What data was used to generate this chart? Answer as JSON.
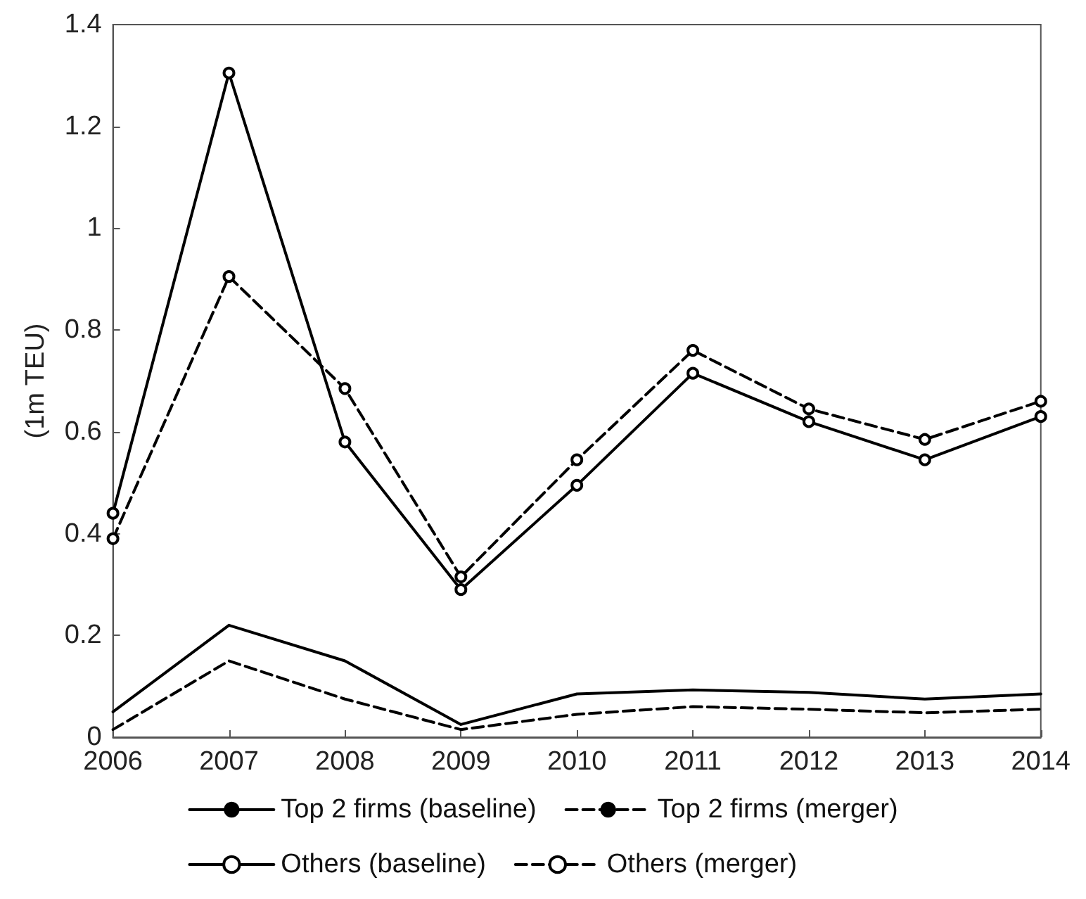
{
  "chart_data": {
    "type": "line",
    "ylabel": "(1m TEU)",
    "x": [
      2006,
      2007,
      2008,
      2009,
      2010,
      2011,
      2012,
      2013,
      2014
    ],
    "series": [
      {
        "name": "Top 2 firms (baseline)",
        "color": "#000000",
        "line_style": "solid",
        "marker": "none",
        "values": [
          0.05,
          0.22,
          0.15,
          0.025,
          0.085,
          0.093,
          0.088,
          0.075,
          0.085
        ]
      },
      {
        "name": "Top 2 firms (merger)",
        "color": "#000000",
        "line_style": "dashed",
        "marker": "none",
        "values": [
          0.015,
          0.15,
          0.075,
          0.015,
          0.045,
          0.06,
          0.055,
          0.048,
          0.055
        ]
      },
      {
        "name": "Others (baseline)",
        "color": "#000000",
        "line_style": "solid",
        "marker": "circle",
        "values": [
          0.44,
          1.305,
          0.58,
          0.29,
          0.495,
          0.715,
          0.62,
          0.545,
          0.63
        ]
      },
      {
        "name": "Others (merger)",
        "color": "#000000",
        "line_style": "dashed",
        "marker": "circle",
        "values": [
          0.39,
          0.905,
          0.685,
          0.315,
          0.545,
          0.76,
          0.645,
          0.585,
          0.66
        ]
      }
    ],
    "xlim": [
      2006,
      2014
    ],
    "xticks": [
      2006,
      2007,
      2008,
      2009,
      2010,
      2011,
      2012,
      2013,
      2014
    ],
    "ylim": [
      0,
      1.4
    ],
    "yticks": [
      0,
      0.2,
      0.4,
      0.6,
      0.8,
      1,
      1.2,
      1.4
    ],
    "grid": false,
    "legend": "bottom"
  }
}
